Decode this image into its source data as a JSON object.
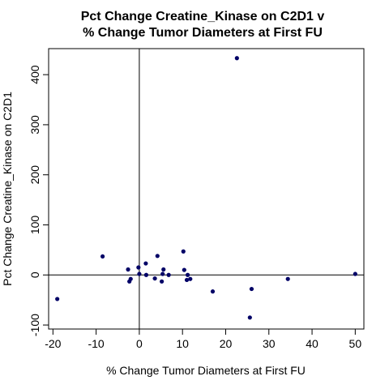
{
  "chart_data": {
    "type": "scatter",
    "title_line1": "Pct Change Creatine_Kinase on C2D1 v",
    "title_line2": "% Change Tumor Diameters at First FU",
    "xlabel": "% Change Tumor Diameters at First FU",
    "ylabel": "Pct Change Creatine_Kinase on C2D1",
    "xlim": [
      -21,
      52
    ],
    "ylim": [
      -108,
      452
    ],
    "xticks": [
      -20,
      -10,
      0,
      10,
      20,
      30,
      40,
      50
    ],
    "yticks": [
      -100,
      0,
      100,
      200,
      300,
      400
    ],
    "reference_lines": {
      "x": 0,
      "y": 0
    },
    "point_color": "#000066",
    "points": [
      {
        "x": -19,
        "y": -48
      },
      {
        "x": -8.5,
        "y": 37
      },
      {
        "x": -2.6,
        "y": 11
      },
      {
        "x": -2.3,
        "y": -13
      },
      {
        "x": -2.0,
        "y": -8
      },
      {
        "x": -0.2,
        "y": 15
      },
      {
        "x": 0.0,
        "y": 2
      },
      {
        "x": 1.5,
        "y": 23
      },
      {
        "x": 1.6,
        "y": 0
      },
      {
        "x": 3.6,
        "y": -7
      },
      {
        "x": 4.2,
        "y": 38
      },
      {
        "x": 5.2,
        "y": -13
      },
      {
        "x": 5.4,
        "y": 2
      },
      {
        "x": 5.6,
        "y": 11
      },
      {
        "x": 6.8,
        "y": 0
      },
      {
        "x": 10.2,
        "y": 47
      },
      {
        "x": 10.4,
        "y": 10
      },
      {
        "x": 11.0,
        "y": -10
      },
      {
        "x": 11.2,
        "y": 0
      },
      {
        "x": 11.8,
        "y": -8
      },
      {
        "x": 17.0,
        "y": -33
      },
      {
        "x": 22.6,
        "y": 433
      },
      {
        "x": 25.6,
        "y": -85
      },
      {
        "x": 26.0,
        "y": -28
      },
      {
        "x": 34.4,
        "y": -8
      },
      {
        "x": 50.0,
        "y": 2
      }
    ]
  }
}
